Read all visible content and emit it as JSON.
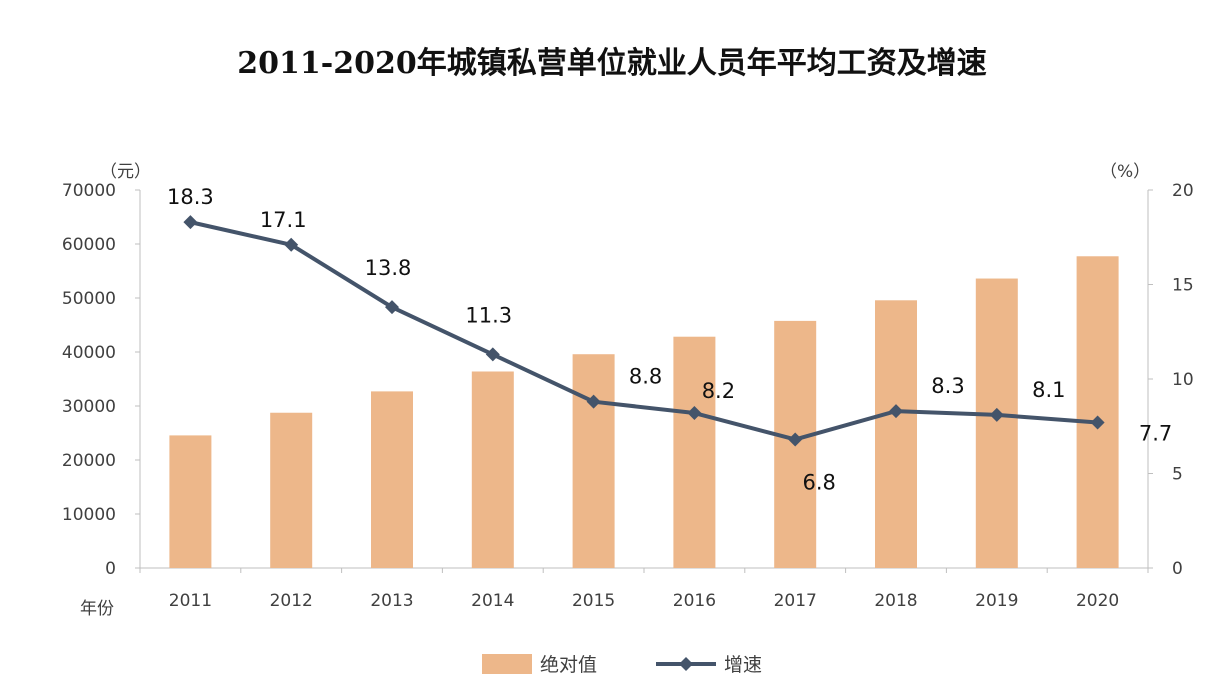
{
  "chart_data": {
    "type": "bar+line",
    "title": "2011-2020年城镇私营单位就业人员年平均工资及增速",
    "categories": [
      "2011",
      "2012",
      "2013",
      "2014",
      "2015",
      "2016",
      "2017",
      "2018",
      "2019",
      "2020"
    ],
    "series": [
      {
        "name": "绝对值",
        "type": "bar",
        "axis": "left",
        "color": "#EDB78A",
        "values": [
          24556,
          28752,
          32706,
          36390,
          39589,
          42833,
          45761,
          49575,
          53604,
          57727
        ]
      },
      {
        "name": "增速",
        "type": "line",
        "axis": "right",
        "color": "#44546A",
        "values": [
          18.3,
          17.1,
          13.8,
          11.3,
          8.8,
          8.2,
          6.8,
          8.3,
          8.1,
          7.7
        ],
        "labels": [
          "18.3",
          "17.1",
          "13.8",
          "11.3",
          "8.8",
          "8.2",
          "6.8",
          "8.3",
          "8.1",
          "7.7"
        ]
      }
    ],
    "y_left": {
      "unit": "（元）",
      "min": 0,
      "max": 70000,
      "ticks": [
        "0",
        "10000",
        "20000",
        "30000",
        "40000",
        "50000",
        "60000",
        "70000"
      ]
    },
    "y_right": {
      "unit": "（%）",
      "min": 0,
      "max": 20,
      "ticks": [
        "0",
        "5",
        "10",
        "15",
        "20"
      ]
    },
    "xlabel": "年份",
    "legend_position": "bottom",
    "grid": false
  }
}
